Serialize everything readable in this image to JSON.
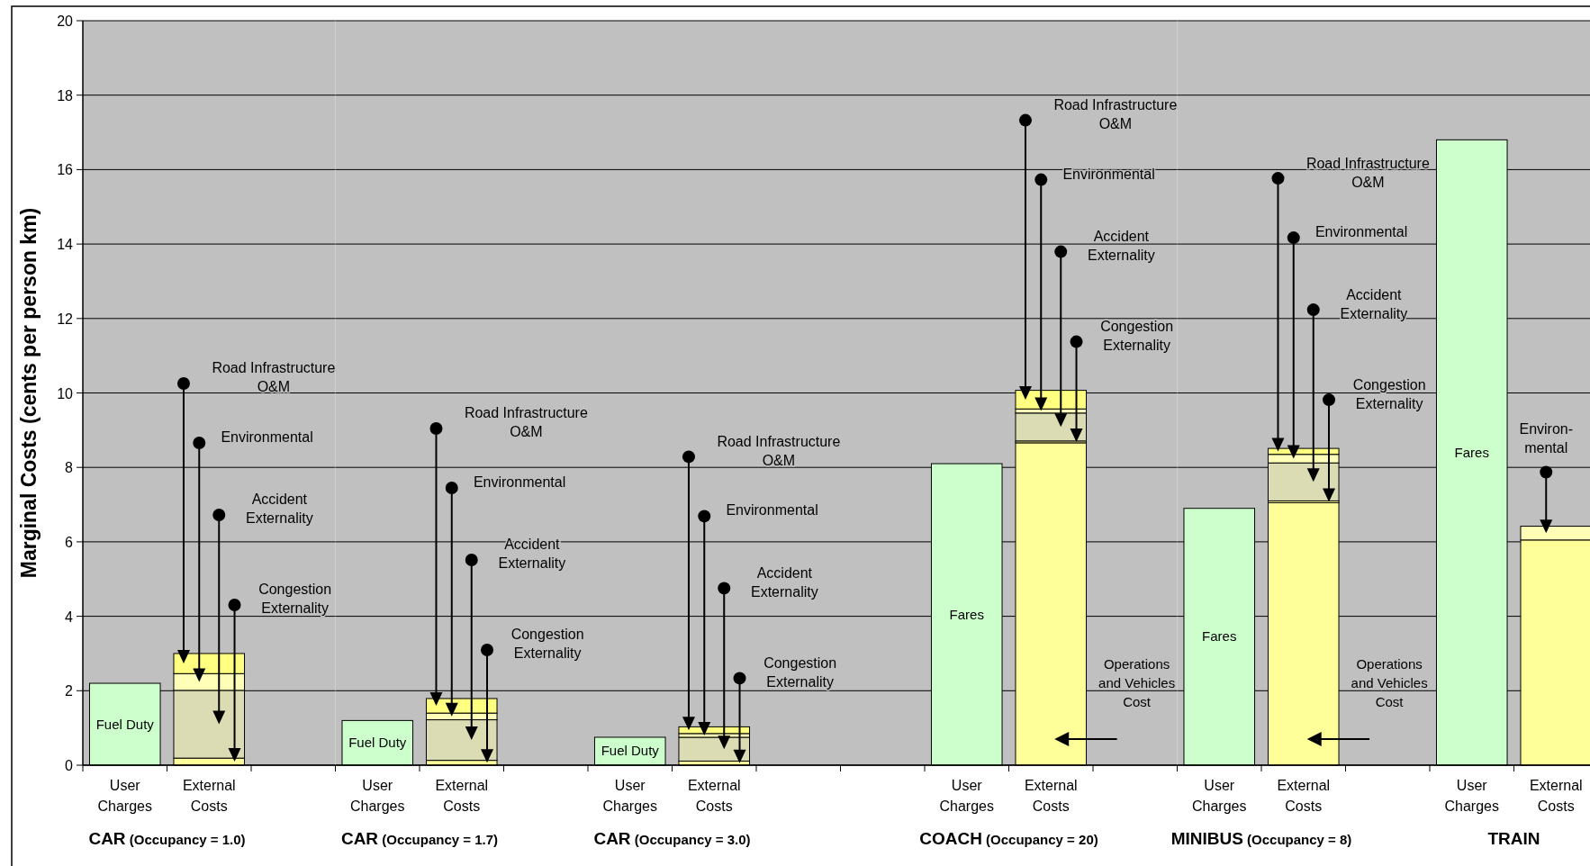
{
  "chart_data": [
    {
      "type": "bar",
      "stacked": true,
      "grid": "y",
      "ylim": [
        0,
        20
      ],
      "yticks": [
        0,
        2,
        4,
        6,
        8,
        10,
        12,
        14,
        16,
        18,
        20
      ],
      "ylabel": "Marginal Costs (cents per person km)",
      "xlabel": "CAR (Occupancy = 1.0)",
      "categories": [
        "User Charges",
        "External Costs",
        null
      ],
      "series": [
        {
          "name": "Fuel Duty",
          "color": "#ccffcc",
          "values": [
            2.2,
            null,
            null
          ]
        },
        {
          "color": "#ffff99",
          "values": [
            null,
            0.19,
            null
          ]
        },
        {
          "color": "#dcdcb4",
          "values": [
            null,
            1.82,
            null
          ]
        },
        {
          "color": "#ffffb8",
          "values": [
            null,
            0.45,
            null
          ]
        },
        {
          "color": "#ffff80",
          "values": [
            null,
            0.54,
            null
          ]
        }
      ],
      "annotations": [
        "Road Infrastructure O&M",
        "Environmental",
        "Accident Externality",
        "Congestion Externality"
      ]
    },
    {
      "type": "bar",
      "stacked": true,
      "grid": "y",
      "tick_labels": "x",
      "ylim": [
        0,
        20
      ],
      "yticks": [
        0,
        2,
        4,
        6,
        8,
        10,
        12,
        14,
        16,
        18,
        20
      ],
      "xlabel": "CAR (Occupancy = 1.7)",
      "categories": [
        "User Charges",
        "External Costs",
        null
      ],
      "series": [
        {
          "name": "Fuel Duty",
          "color": "#ccffcc",
          "values": [
            1.2,
            null,
            null
          ]
        },
        {
          "color": "#ffff99",
          "values": [
            null,
            0.13,
            null
          ]
        },
        {
          "color": "#dcdcb4",
          "values": [
            null,
            1.09,
            null
          ]
        },
        {
          "color": "#ffffb8",
          "values": [
            null,
            0.18,
            null
          ]
        },
        {
          "color": "#ffff80",
          "values": [
            null,
            0.39,
            null
          ]
        }
      ],
      "annotations": [
        "Road Infrastructure O&M",
        "Environmental",
        "Accident Externality",
        "Congestion Externality"
      ]
    },
    {
      "type": "bar",
      "stacked": true,
      "grid": "y",
      "tick_labels": "x",
      "ylim": [
        0,
        20
      ],
      "yticks": [
        0,
        2,
        4,
        6,
        8,
        10,
        12,
        14,
        16,
        18,
        20
      ],
      "xlabel": "CAR (Occupancy = 3.0)",
      "categories": [
        "User Charges",
        "External Costs",
        null,
        null
      ],
      "series": [
        {
          "name": "Fuel Duty",
          "color": "#ccffcc",
          "values": [
            0.75,
            null,
            null,
            null
          ]
        },
        {
          "color": "#ffff99",
          "values": [
            null,
            0.11,
            null,
            null
          ]
        },
        {
          "color": "#dcdcb4",
          "values": [
            null,
            0.64,
            null,
            null
          ]
        },
        {
          "color": "#ffffb8",
          "values": [
            null,
            0.1,
            null,
            null
          ]
        },
        {
          "color": "#ffff80",
          "values": [
            null,
            0.18,
            null,
            null
          ]
        }
      ],
      "annotations": [
        "Road Infrastructure O&M",
        "Environmental",
        "Accident Externality",
        "Congestion Externality"
      ]
    },
    {
      "type": "bar",
      "stacked": true,
      "grid": "y",
      "tick_labels": "x",
      "ylim": [
        0,
        20
      ],
      "yticks": [
        0,
        2,
        4,
        6,
        8,
        10,
        12,
        14,
        16,
        18,
        20
      ],
      "xlabel": "COACH (Occupancy = 20)",
      "categories": [
        "User Charges",
        "External Costs",
        null
      ],
      "series": [
        {
          "name": "Fares",
          "color": "#ccffcc",
          "values": [
            8.1,
            null,
            null
          ]
        },
        {
          "color": "#ffff99",
          "values": [
            null,
            8.66,
            null
          ]
        },
        {
          "color": "#ffff99",
          "values": [
            null,
            0.05,
            null
          ]
        },
        {
          "color": "#dcdcb4",
          "values": [
            null,
            0.75,
            null
          ]
        },
        {
          "color": "#ffffb8",
          "values": [
            null,
            0.11,
            null
          ]
        },
        {
          "color": "#ffff80",
          "values": [
            null,
            0.5,
            null
          ]
        }
      ],
      "annotations": [
        "Road Infrastructure O&M",
        "Environmental",
        "Accident Externality",
        "Congestion Externality",
        "Operations and Vehicles Cost"
      ]
    },
    {
      "type": "bar",
      "stacked": true,
      "grid": "y",
      "tick_labels": "x",
      "ylim": [
        0,
        20
      ],
      "yticks": [
        0,
        2,
        4,
        6,
        8,
        10,
        12,
        14,
        16,
        18,
        20
      ],
      "xlabel": "MINIBUS (Occupancy = 8)",
      "categories": [
        "User Charges",
        "External Costs",
        null
      ],
      "series": [
        {
          "name": "Fares",
          "color": "#ccffcc",
          "values": [
            6.9,
            null,
            null
          ]
        },
        {
          "color": "#ffff99",
          "values": [
            null,
            7.05,
            null
          ]
        },
        {
          "color": "#ffff99",
          "values": [
            null,
            0.05,
            null
          ]
        },
        {
          "color": "#dcdcb4",
          "values": [
            null,
            1.02,
            null
          ]
        },
        {
          "color": "#ffffb8",
          "values": [
            null,
            0.23,
            null
          ]
        },
        {
          "color": "#ffff80",
          "values": [
            null,
            0.16,
            null
          ]
        }
      ],
      "annotations": [
        "Road Infrastructure O&M",
        "Environmental",
        "Accident Externality",
        "Congestion Externality",
        "Operations and Vehicles Cost"
      ]
    },
    {
      "type": "bar",
      "stacked": true,
      "grid": "y",
      "tick_labels": "x",
      "ylim": [
        0,
        20
      ],
      "yticks": [
        0,
        2,
        4,
        6,
        8,
        10,
        12,
        14,
        16,
        18,
        20
      ],
      "xlabel": "TRAIN",
      "categories": [
        "User Charges",
        "External Costs"
      ],
      "series": [
        {
          "name": "Fares",
          "color": "#ccffcc",
          "values": [
            16.8,
            null
          ]
        },
        {
          "color": "#ffff99",
          "values": [
            null,
            6.05
          ]
        },
        {
          "color": "#ffffb8",
          "values": [
            null,
            0.37
          ]
        }
      ],
      "annotations": [
        "Environ-mental"
      ]
    }
  ]
}
